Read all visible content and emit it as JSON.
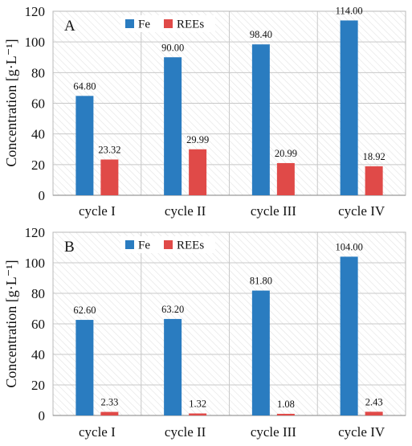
{
  "chart_data": [
    {
      "panel_label": "A",
      "type": "bar",
      "categories": [
        "cycle I",
        "cycle II",
        "cycle III",
        "cycle IV"
      ],
      "series": [
        {
          "name": "Fe",
          "color": "#2a7cc0",
          "values": [
            64.8,
            90.0,
            98.4,
            114.0
          ]
        },
        {
          "name": "REEs",
          "color": "#e04a48",
          "values": [
            23.32,
            29.99,
            20.99,
            18.92
          ]
        }
      ],
      "ylabel": "Concentration [g·L⁻¹]",
      "ylim": [
        0,
        120
      ],
      "yticks": [
        0,
        20,
        40,
        60,
        80,
        100,
        120
      ],
      "legend_position": "top-left",
      "grid": true
    },
    {
      "panel_label": "B",
      "type": "bar",
      "categories": [
        "cycle I",
        "cycle II",
        "cycle III",
        "cycle IV"
      ],
      "series": [
        {
          "name": "Fe",
          "color": "#2a7cc0",
          "values": [
            62.6,
            63.2,
            81.8,
            104.0
          ]
        },
        {
          "name": "REEs",
          "color": "#e04a48",
          "values": [
            2.33,
            1.32,
            1.08,
            2.43
          ]
        }
      ],
      "ylabel": "Concentration [g·L⁻¹]",
      "ylim": [
        0,
        120
      ],
      "yticks": [
        0,
        20,
        40,
        60,
        80,
        100,
        120
      ],
      "legend_position": "top-left",
      "grid": true
    }
  ]
}
